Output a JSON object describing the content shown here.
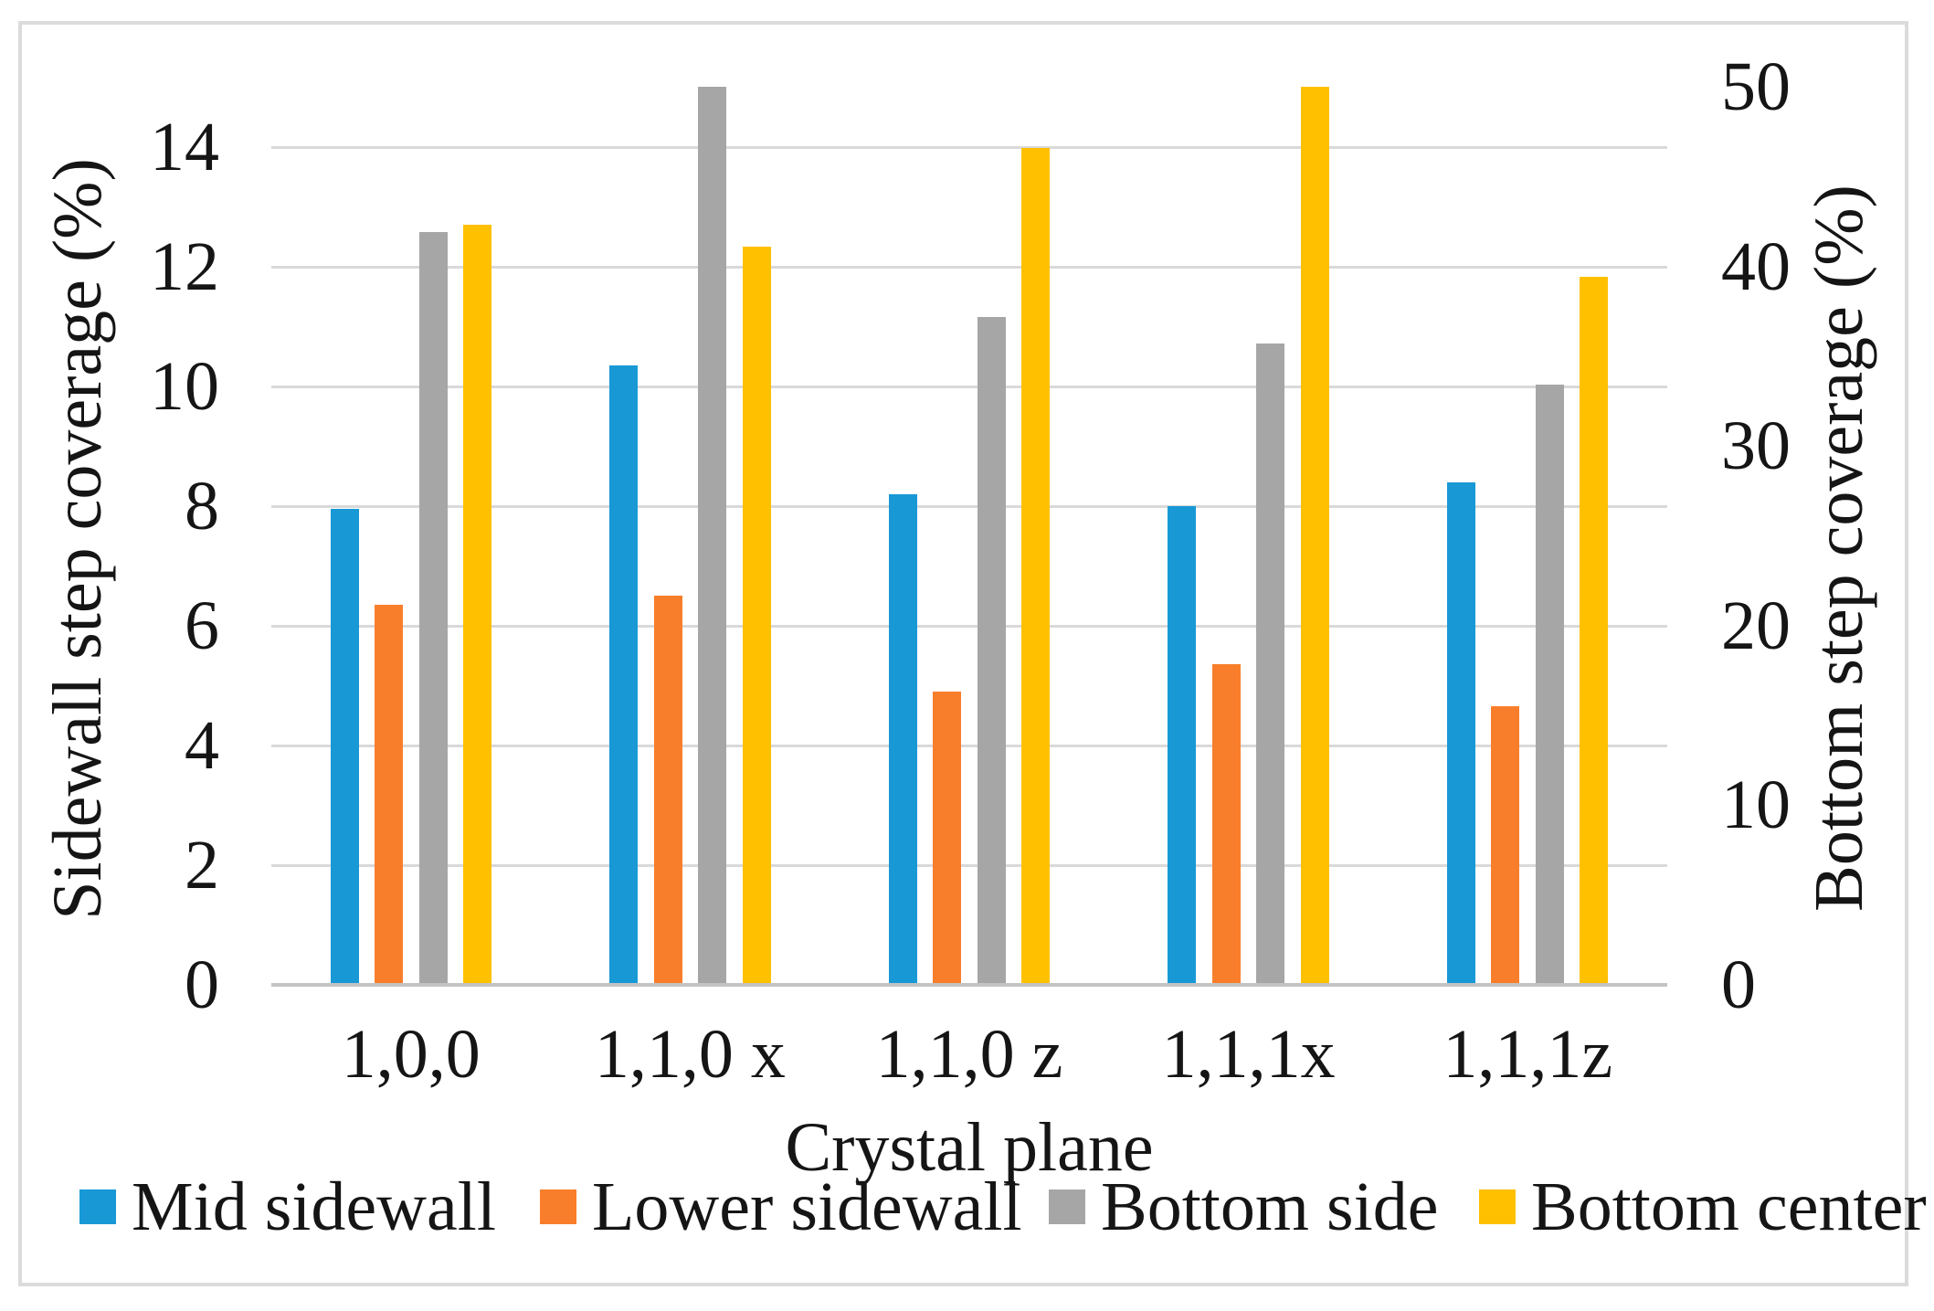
{
  "chart_data": {
    "type": "bar",
    "title": "",
    "categories": [
      "1,0,0",
      "1,1,0 x",
      "1,1,0 z",
      "1,1,1x",
      "1,1,1z"
    ],
    "series": [
      {
        "name": "Mid sidewall",
        "axis": "left",
        "color": "#1899D6",
        "values": [
          7.95,
          10.35,
          8.2,
          8.0,
          8.4
        ]
      },
      {
        "name": "Lower sidewall",
        "axis": "left",
        "color": "#F97E2B",
        "values": [
          6.35,
          6.5,
          4.9,
          5.35,
          4.65
        ]
      },
      {
        "name": "Bottom side",
        "axis": "right",
        "color": "#A6A6A6",
        "values": [
          41.9,
          50,
          37.2,
          35.7,
          33.4
        ]
      },
      {
        "name": "Bottom center",
        "axis": "right",
        "color": "#FFC000",
        "values": [
          42.3,
          41.1,
          46.6,
          50,
          39.4
        ]
      }
    ],
    "xlabel": "Crystal plane",
    "ylabel_left": "Sidewall step coverage (%)",
    "ylabel_right": "Bottom step coverage (%)",
    "left_axis": {
      "min": 0,
      "max": 15,
      "ticks": [
        0,
        2,
        4,
        6,
        8,
        10,
        12,
        14
      ]
    },
    "right_axis": {
      "min": 0,
      "max": 50,
      "ticks": [
        0,
        10,
        20,
        30,
        40,
        50
      ]
    },
    "grid": true,
    "legend_position": "bottom"
  },
  "colors": {
    "gridline": "#d9d9d9",
    "axis_line": "#c3c3c3",
    "figure_border": "#dbdbdb",
    "text": "#151515",
    "background": "#ffffff"
  }
}
